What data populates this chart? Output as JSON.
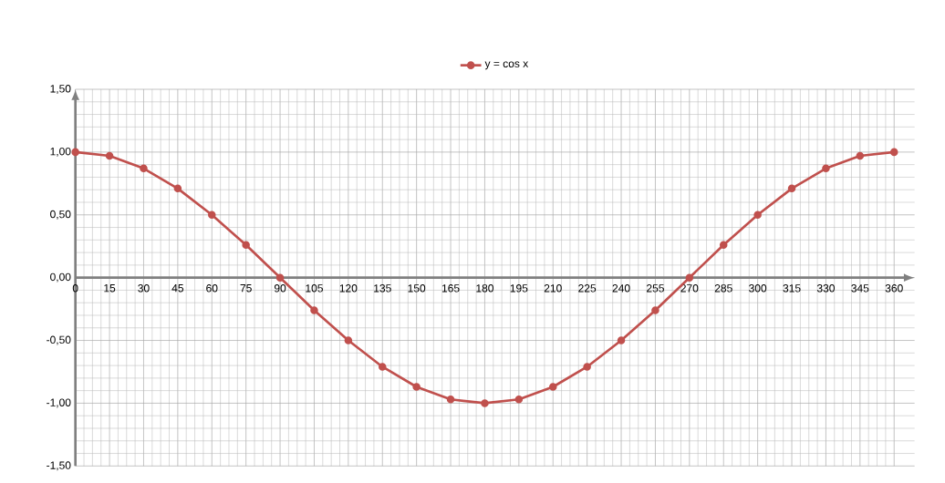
{
  "chart_data": {
    "type": "line",
    "categories": [
      "0",
      "15",
      "30",
      "45",
      "60",
      "75",
      "90",
      "105",
      "120",
      "135",
      "150",
      "165",
      "180",
      "195",
      "210",
      "225",
      "240",
      "255",
      "270",
      "285",
      "300",
      "315",
      "330",
      "345",
      "360"
    ],
    "series": [
      {
        "name": "y = cos x",
        "color": "#c0504d",
        "values": [
          1.0,
          0.97,
          0.87,
          0.71,
          0.5,
          0.26,
          0.0,
          -0.26,
          -0.5,
          -0.71,
          -0.87,
          -0.97,
          -1.0,
          -0.97,
          -0.87,
          -0.71,
          -0.5,
          -0.26,
          0.0,
          0.26,
          0.5,
          0.71,
          0.87,
          0.97,
          1.0
        ]
      }
    ],
    "ylim": [
      -1.5,
      1.5
    ],
    "yticks": [
      {
        "value": -1.5,
        "label": "-1,50"
      },
      {
        "value": -1.0,
        "label": "-1,00"
      },
      {
        "value": -0.5,
        "label": "-0,50"
      },
      {
        "value": 0.0,
        "label": "0,00"
      },
      {
        "value": 0.5,
        "label": "0,50"
      },
      {
        "value": 1.0,
        "label": "1,00"
      },
      {
        "value": 1.5,
        "label": "1,50"
      }
    ],
    "grid": true,
    "legend": "top",
    "marker": "circle",
    "line_style": "solid"
  }
}
